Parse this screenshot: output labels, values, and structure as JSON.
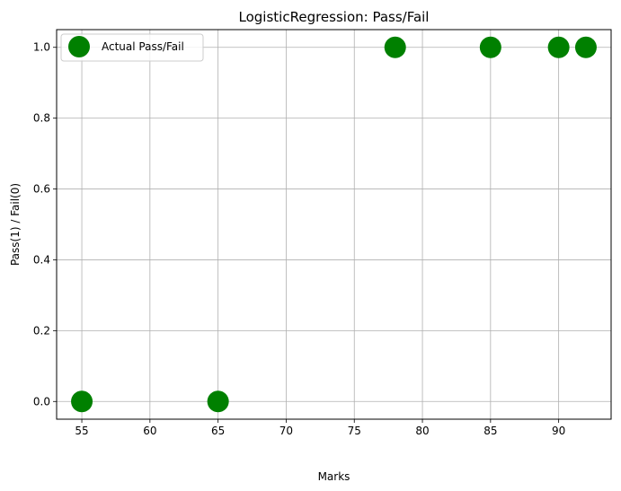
{
  "chart_data": {
    "type": "scatter",
    "title": "LogisticRegression: Pass/Fail",
    "xlabel": "Marks",
    "ylabel": "Pass(1) / Fail(0)",
    "xlim": [
      53.15,
      93.85
    ],
    "ylim": [
      -0.05,
      1.05
    ],
    "xticks": [
      55,
      60,
      65,
      70,
      75,
      80,
      85,
      90
    ],
    "xtick_labels": [
      "55",
      "60",
      "65",
      "70",
      "75",
      "80",
      "85",
      "90"
    ],
    "yticks": [
      0.0,
      0.2,
      0.4,
      0.6,
      0.8,
      1.0
    ],
    "ytick_labels": [
      "0.0",
      "0.2",
      "0.4",
      "0.6",
      "0.8",
      "1.0"
    ],
    "grid": true,
    "legend_position": "top-left",
    "series": [
      {
        "name": "Actual Pass/Fail",
        "color": "#008000",
        "points": [
          {
            "x": 55,
            "y": 0
          },
          {
            "x": 65,
            "y": 0
          },
          {
            "x": 78,
            "y": 1
          },
          {
            "x": 85,
            "y": 1
          },
          {
            "x": 90,
            "y": 1
          },
          {
            "x": 92,
            "y": 1
          }
        ]
      }
    ]
  }
}
